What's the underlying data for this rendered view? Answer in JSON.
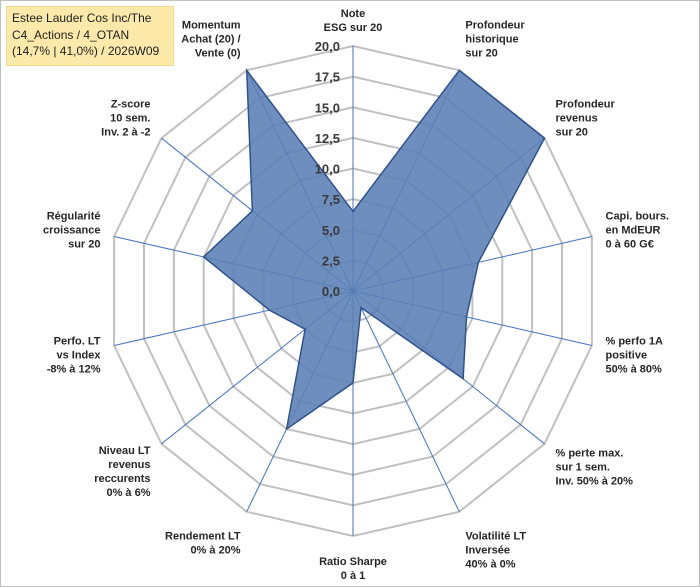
{
  "title": {
    "line1": "Estee Lauder Cos Inc/The",
    "line2": "C4_Actions / 4_OTAN",
    "line3": "(14,7% | 41,0%) / 2026W09"
  },
  "chart_data": {
    "type": "radar",
    "rmin": 0,
    "rmax": 20,
    "grid_step": 2.5,
    "tick_labels": [
      "0,0",
      "2,5",
      "5,0",
      "7,5",
      "10,0",
      "12,5",
      "15,0",
      "17,5",
      "20,0"
    ],
    "axes": [
      {
        "label": [
          "Note",
          "ESG sur 20"
        ],
        "value": 6.5
      },
      {
        "label": [
          "Profondeur",
          "historique",
          "sur 20"
        ],
        "value": 20
      },
      {
        "label": [
          "Profondeur",
          "revenus",
          "sur 20"
        ],
        "value": 20
      },
      {
        "label": [
          "Capi. bours.",
          "en MdEUR",
          "0 à 60 G€"
        ],
        "value": 10.5
      },
      {
        "label": [
          "% perfo 1A",
          "positive",
          "50% à 80%"
        ],
        "value": 9.5
      },
      {
        "label": [
          "% perte max.",
          "sur 1 sem.",
          "Inv. 50% à 20%"
        ],
        "value": 11.5
      },
      {
        "label": [
          "Volatilité LT",
          "Inversée",
          "40% à 0%"
        ],
        "value": 1.5
      },
      {
        "label": [
          "Ratio Sharpe",
          "0 à 1"
        ],
        "value": 7.5
      },
      {
        "label": [
          "Rendement LT",
          "0% à 20%"
        ],
        "value": 12.5
      },
      {
        "label": [
          "Niveau LT",
          "revenus",
          "reccurents",
          "0% à 6%"
        ],
        "value": 5
      },
      {
        "label": [
          "Perfo. LT",
          "vs Index",
          "-8% à 12%"
        ],
        "value": 7
      },
      {
        "label": [
          "Régularité",
          "croissance",
          "sur 20"
        ],
        "value": 12.5
      },
      {
        "label": [
          "Z-score",
          "10 sem.",
          "Inv. 2 à -2"
        ],
        "value": 10.5
      },
      {
        "label": [
          "Momentum",
          "Achat (20) /",
          "Vente (0)"
        ],
        "value": 20
      }
    ],
    "colors": {
      "fill": "#5a7fb5",
      "stroke": "#2f528f",
      "grid": "#c0c0c0",
      "spoke": "#4472c4"
    }
  }
}
